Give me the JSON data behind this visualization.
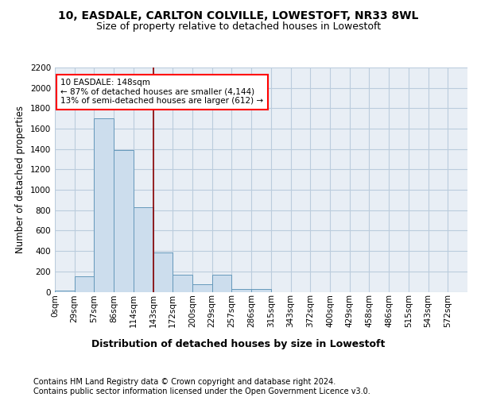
{
  "title1": "10, EASDALE, CARLTON COLVILLE, LOWESTOFT, NR33 8WL",
  "title2": "Size of property relative to detached houses in Lowestoft",
  "xlabel": "Distribution of detached houses by size in Lowestoft",
  "ylabel": "Number of detached properties",
  "footer": "Contains HM Land Registry data © Crown copyright and database right 2024.\nContains public sector information licensed under the Open Government Licence v3.0.",
  "bin_labels": [
    "0sqm",
    "29sqm",
    "57sqm",
    "86sqm",
    "114sqm",
    "143sqm",
    "172sqm",
    "200sqm",
    "229sqm",
    "257sqm",
    "286sqm",
    "315sqm",
    "343sqm",
    "372sqm",
    "400sqm",
    "429sqm",
    "458sqm",
    "486sqm",
    "515sqm",
    "543sqm",
    "572sqm"
  ],
  "bar_values": [
    15,
    155,
    1700,
    1390,
    830,
    385,
    165,
    75,
    170,
    30,
    25,
    0,
    0,
    0,
    0,
    0,
    0,
    0,
    0,
    0,
    0
  ],
  "bar_color": "#ccdded",
  "bar_edge_color": "#6699bb",
  "vline_x_index": 5,
  "vline_color": "#8b0000",
  "annotation_text": "10 EASDALE: 148sqm\n← 87% of detached houses are smaller (4,144)\n13% of semi-detached houses are larger (612) →",
  "annotation_box_color": "white",
  "annotation_box_edge": "red",
  "ylim": [
    0,
    2200
  ],
  "yticks": [
    0,
    200,
    400,
    600,
    800,
    1000,
    1200,
    1400,
    1600,
    1800,
    2000,
    2200
  ],
  "grid_color": "#bbccdd",
  "bg_color": "#e8eef5",
  "title1_fontsize": 10,
  "title2_fontsize": 9,
  "xlabel_fontsize": 9,
  "ylabel_fontsize": 8.5,
  "tick_fontsize": 7.5,
  "footer_fontsize": 7,
  "annot_fontsize": 7.5
}
